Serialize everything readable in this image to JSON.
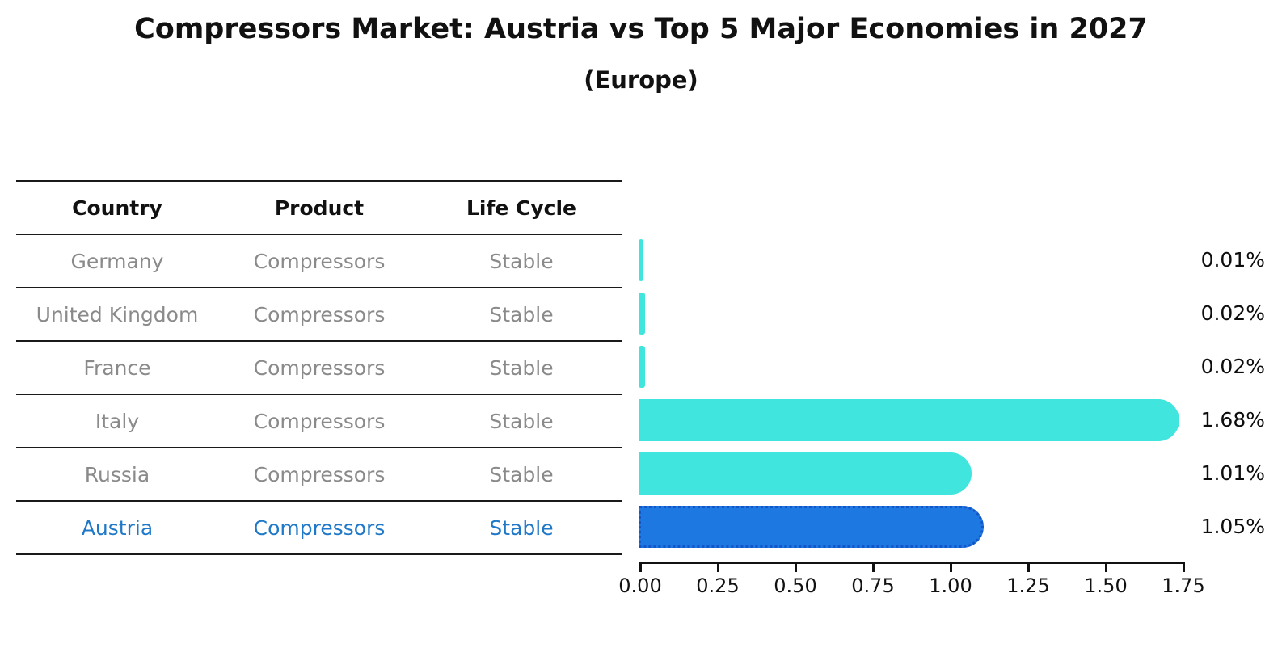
{
  "title": "Compressors Market: Austria vs Top 5 Major Economies in 2027",
  "subtitle": "(Europe)",
  "table": {
    "headers": [
      "Country",
      "Product",
      "Life Cycle"
    ],
    "rows": [
      {
        "country": "Germany",
        "product": "Compressors",
        "life_cycle": "Stable",
        "highlight": false
      },
      {
        "country": "United Kingdom",
        "product": "Compressors",
        "life_cycle": "Stable",
        "highlight": false
      },
      {
        "country": "France",
        "product": "Compressors",
        "life_cycle": "Stable",
        "highlight": false
      },
      {
        "country": "Italy",
        "product": "Compressors",
        "life_cycle": "Stable",
        "highlight": false
      },
      {
        "country": "Russia",
        "product": "Compressors",
        "life_cycle": "Stable",
        "highlight": false
      },
      {
        "country": "Austria",
        "product": "Compressors",
        "life_cycle": "Stable",
        "highlight": true
      }
    ]
  },
  "chart_data": {
    "type": "bar",
    "orientation": "horizontal",
    "title": "Compressors Market: Austria vs Top 5 Major Economies in 2027",
    "subtitle": "(Europe)",
    "categories": [
      "Germany",
      "United Kingdom",
      "France",
      "Italy",
      "Russia",
      "Austria"
    ],
    "values": [
      0.01,
      0.02,
      0.02,
      1.68,
      1.01,
      1.05
    ],
    "value_labels": [
      "0.01%",
      "0.02%",
      "0.02%",
      "1.68%",
      "1.01%",
      "1.05%"
    ],
    "x_ticks": [
      0.0,
      0.25,
      0.5,
      0.75,
      1.0,
      1.25,
      1.5,
      1.75
    ],
    "x_tick_labels": [
      "0.00",
      "0.25",
      "0.50",
      "0.75",
      "1.00",
      "1.25",
      "1.50",
      "1.75"
    ],
    "xlim": [
      0,
      1.75
    ],
    "grid": false,
    "legend": "none",
    "highlight_index": 5
  },
  "colors": {
    "bar": "#40E5DE",
    "highlight_bar": "#1E78E1",
    "highlight_border": "#1256C9",
    "highlight_text": "#1F78C8",
    "row_text": "#8a8a8a",
    "header_text": "#111111",
    "line": "#1a1a1a",
    "background": "#ffffff"
  }
}
